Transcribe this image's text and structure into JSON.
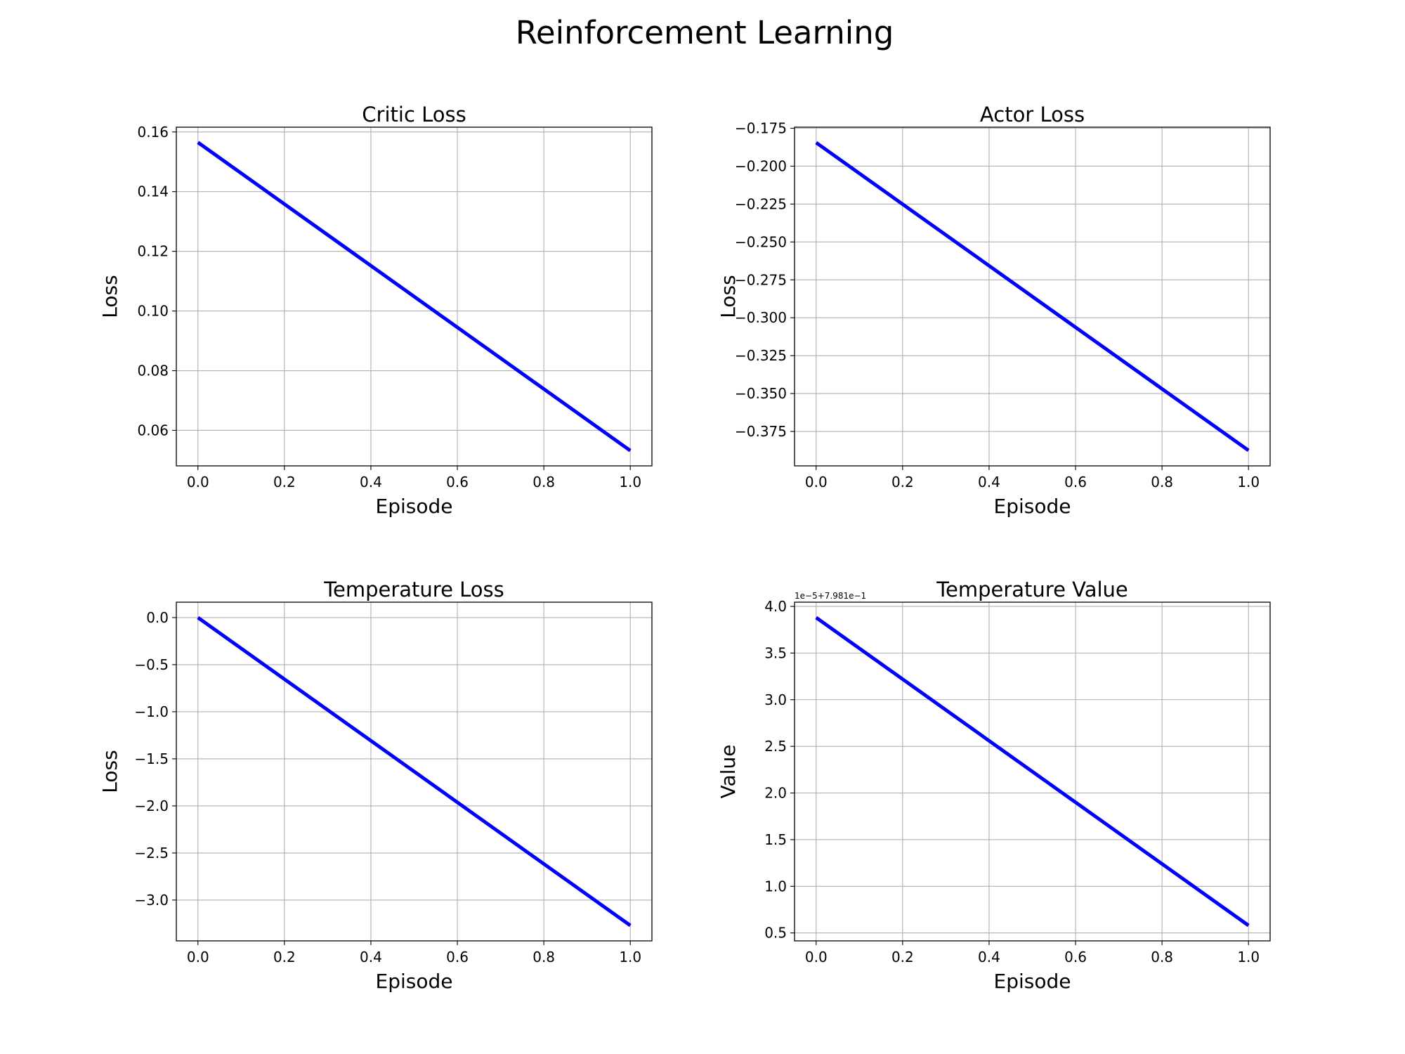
{
  "figure": {
    "title": "Reinforcement Learning"
  },
  "chart_data": [
    {
      "type": "line",
      "title": "Critic Loss",
      "xlabel": "Episode",
      "ylabel": "Loss",
      "x": [
        0.0,
        1.0
      ],
      "series": [
        {
          "values": [
            0.1565,
            0.0532
          ],
          "color": "#0000ff"
        }
      ],
      "xlim": [
        -0.05,
        1.05
      ],
      "ylim": [
        0.0481,
        0.1616
      ],
      "xticks": [
        0.0,
        0.2,
        0.4,
        0.6,
        0.8,
        1.0
      ],
      "xtick_labels": [
        "0.0",
        "0.2",
        "0.4",
        "0.6",
        "0.8",
        "1.0"
      ],
      "yticks": [
        0.06,
        0.08,
        0.1,
        0.12,
        0.14,
        0.16
      ],
      "ytick_labels": [
        "0.06",
        "0.08",
        "0.10",
        "0.12",
        "0.14",
        "0.16"
      ],
      "offset_text": "",
      "grid": true
    },
    {
      "type": "line",
      "title": "Actor Loss",
      "xlabel": "Episode",
      "ylabel": "Loss",
      "x": [
        0.0,
        1.0
      ],
      "series": [
        {
          "values": [
            -0.1845,
            -0.3875
          ],
          "color": "#0000ff"
        }
      ],
      "xlim": [
        -0.05,
        1.05
      ],
      "ylim": [
        -0.3977,
        -0.1743
      ],
      "xticks": [
        0.0,
        0.2,
        0.4,
        0.6,
        0.8,
        1.0
      ],
      "xtick_labels": [
        "0.0",
        "0.2",
        "0.4",
        "0.6",
        "0.8",
        "1.0"
      ],
      "yticks": [
        -0.375,
        -0.35,
        -0.325,
        -0.3,
        -0.275,
        -0.25,
        -0.225,
        -0.2,
        -0.175
      ],
      "ytick_labels": [
        "−0.375",
        "−0.350",
        "−0.325",
        "−0.300",
        "−0.275",
        "−0.250",
        "−0.225",
        "−0.200",
        "−0.175"
      ],
      "offset_text": "",
      "grid": true
    },
    {
      "type": "line",
      "title": "Temperature Loss",
      "xlabel": "Episode",
      "ylabel": "Loss",
      "x": [
        0.0,
        1.0
      ],
      "series": [
        {
          "values": [
            0.0,
            -3.27
          ],
          "color": "#0000ff"
        }
      ],
      "xlim": [
        -0.05,
        1.05
      ],
      "ylim": [
        -3.4335,
        0.1635
      ],
      "xticks": [
        0.0,
        0.2,
        0.4,
        0.6,
        0.8,
        1.0
      ],
      "xtick_labels": [
        "0.0",
        "0.2",
        "0.4",
        "0.6",
        "0.8",
        "1.0"
      ],
      "yticks": [
        -3.0,
        -2.5,
        -2.0,
        -1.5,
        -1.0,
        -0.5,
        0.0
      ],
      "ytick_labels": [
        "−3.0",
        "−2.5",
        "−2.0",
        "−1.5",
        "−1.0",
        "−0.5",
        "0.0"
      ],
      "offset_text": "",
      "grid": true
    },
    {
      "type": "line",
      "title": "Temperature Value",
      "xlabel": "Episode",
      "ylabel": "Value",
      "x": [
        0.0,
        1.0
      ],
      "series": [
        {
          "values": [
            3.88,
            0.58
          ],
          "color": "#0000ff"
        }
      ],
      "xlim": [
        -0.05,
        1.05
      ],
      "ylim": [
        0.415,
        4.045
      ],
      "xticks": [
        0.0,
        0.2,
        0.4,
        0.6,
        0.8,
        1.0
      ],
      "xtick_labels": [
        "0.0",
        "0.2",
        "0.4",
        "0.6",
        "0.8",
        "1.0"
      ],
      "yticks": [
        0.5,
        1.0,
        1.5,
        2.0,
        2.5,
        3.0,
        3.5,
        4.0
      ],
      "ytick_labels": [
        "0.5",
        "1.0",
        "1.5",
        "2.0",
        "2.5",
        "3.0",
        "3.5",
        "4.0"
      ],
      "offset_text": "1e−5+7.981e−1",
      "grid": true
    }
  ]
}
